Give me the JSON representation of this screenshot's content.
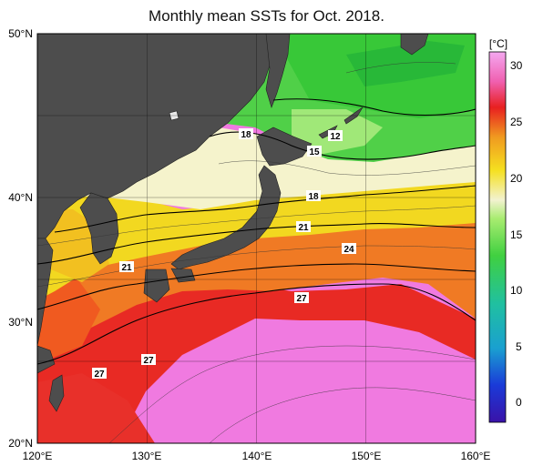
{
  "title": "Monthly mean SSTs for Oct. 2018.",
  "unit_label": "[°C]",
  "lat_labels": [
    "50°N",
    "40°N",
    "30°N",
    "20°N"
  ],
  "lon_labels": [
    "120°E",
    "130°E",
    "140°E",
    "150°E",
    "160°E"
  ],
  "colorbar_ticks": [
    "30",
    "25",
    "20",
    "15",
    "10",
    "5",
    "0"
  ],
  "contour_labels": [
    "18",
    "12",
    "15",
    "18",
    "21",
    "24",
    "21",
    "27",
    "27",
    "27"
  ],
  "colors": {
    "land": "#4d4d4d",
    "warm_pink": "#f080e8",
    "red": "#e82020",
    "orange": "#f08a20",
    "yellow": "#f5e020",
    "pale": "#f5f2c8",
    "green": "#40d040"
  }
}
